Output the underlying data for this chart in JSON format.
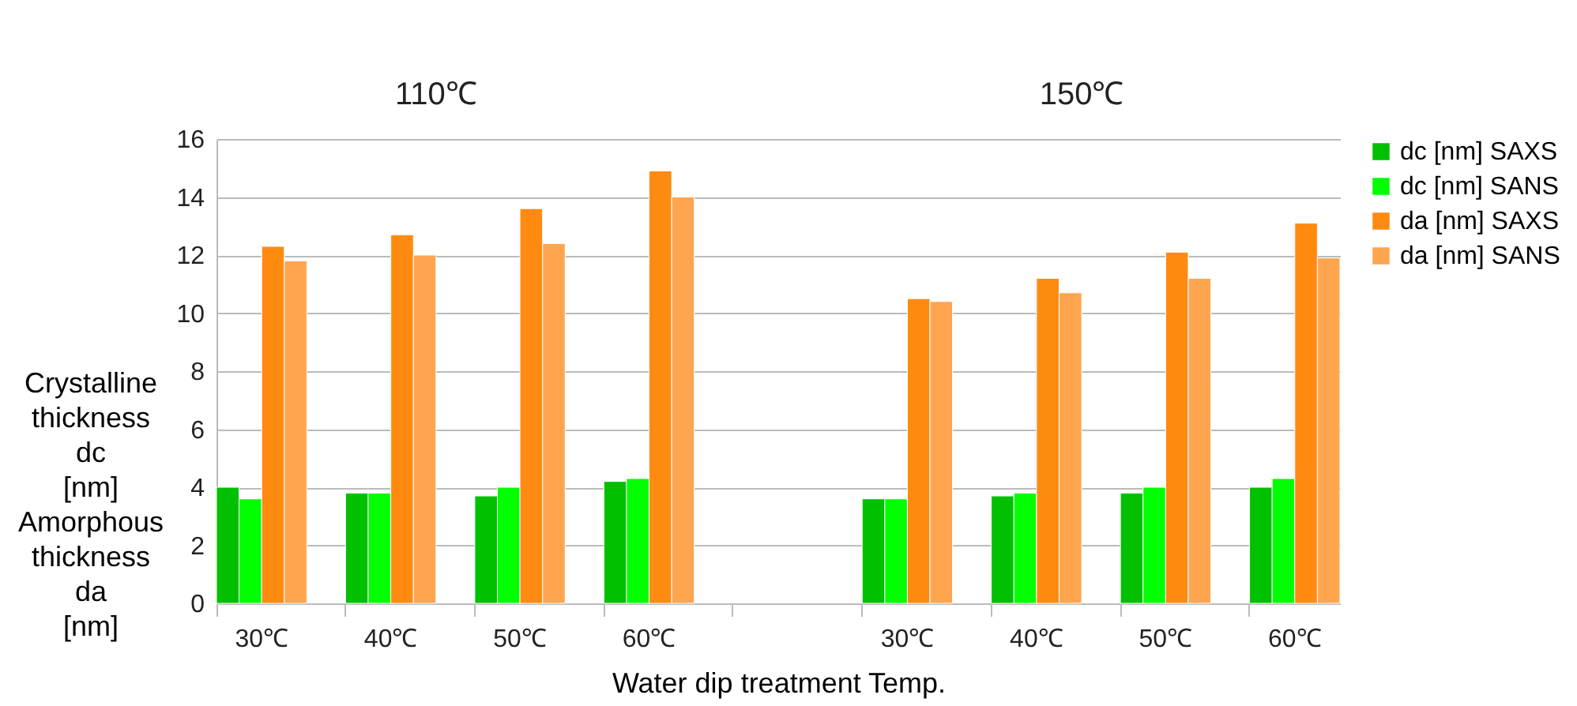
{
  "chart_data": {
    "type": "bar",
    "annotations": [
      "110℃",
      "150℃"
    ],
    "xlabel": "Water dip treatment Temp.",
    "ylabel": "Crystalline\nthickness\ndc\n[nm]\nAmorphous\nthickness\nda\n[nm]",
    "categories": [
      "30℃",
      "40℃",
      "50℃",
      "60℃",
      null,
      "30℃",
      "40℃",
      "50℃",
      "60℃"
    ],
    "series": [
      {
        "name": "dc [nm] SAXS",
        "color": "#00c000",
        "values": [
          4.0,
          3.8,
          3.7,
          4.2,
          null,
          3.6,
          3.7,
          3.8,
          4.0
        ]
      },
      {
        "name": "dc [nm] SANS",
        "color": "#00ff00",
        "values": [
          3.6,
          3.8,
          4.0,
          4.3,
          null,
          3.6,
          3.8,
          4.0,
          4.3
        ]
      },
      {
        "name": "da [nm] SAXS",
        "color": "#ff8a10",
        "values": [
          12.3,
          12.7,
          13.6,
          14.9,
          null,
          10.5,
          11.2,
          12.1,
          13.1
        ]
      },
      {
        "name": "da [nm] SANS",
        "color": "#ffa550",
        "values": [
          11.8,
          12.0,
          12.4,
          14.0,
          null,
          10.4,
          10.7,
          11.2,
          11.9
        ]
      }
    ],
    "ylim": [
      0,
      16
    ],
    "yticks": [
      0,
      2,
      4,
      6,
      8,
      10,
      12,
      14,
      16
    ],
    "grid": "y",
    "legend": "right"
  }
}
